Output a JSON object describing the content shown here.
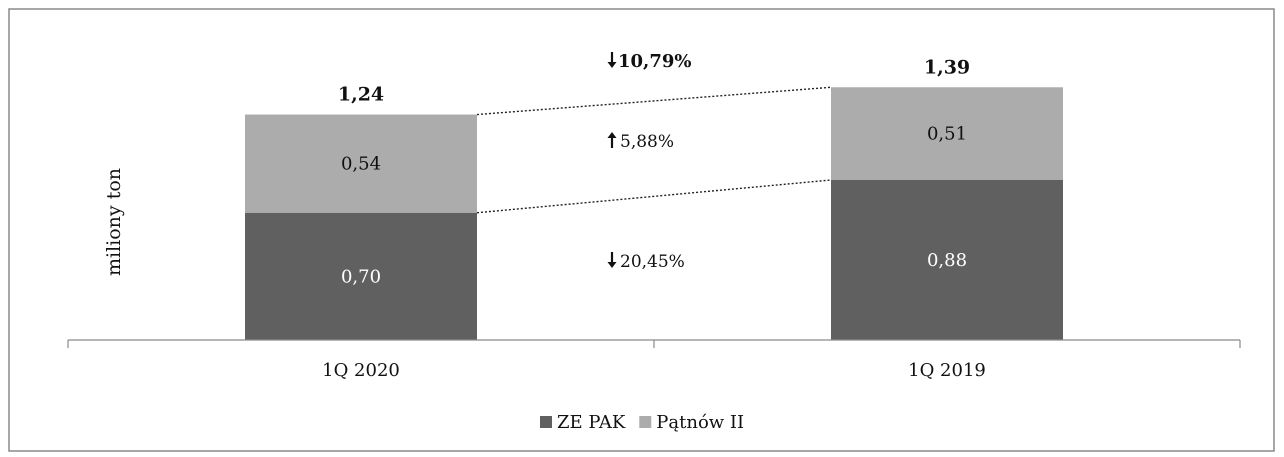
{
  "chart_data": {
    "type": "bar",
    "stacked": true,
    "title": "",
    "ylabel": "miliony ton",
    "xlabel": "",
    "categories": [
      "1Q 2020",
      "1Q 2019"
    ],
    "series": [
      {
        "name": "ZE PAK",
        "values": [
          0.7,
          0.88
        ],
        "labels": [
          "0,70",
          "0,88"
        ],
        "color": "#606060",
        "label_color": "#ffffff"
      },
      {
        "name": "Pątnów II",
        "values": [
          0.54,
          0.51
        ],
        "labels": [
          "0,54",
          "0,51"
        ],
        "color": "#acacac",
        "label_color": "#111111"
      }
    ],
    "totals": [
      {
        "value": 1.24,
        "label": "1,24"
      },
      {
        "value": 1.39,
        "label": "1,39"
      }
    ],
    "ylim": [
      0,
      1.65
    ],
    "grid": false,
    "legend": "bottom",
    "annotations": [
      {
        "arrow": "down",
        "text": "10,79%",
        "bold": true,
        "refers_to": "total"
      },
      {
        "arrow": "up",
        "text": "5,88%",
        "bold": false,
        "refers_to": "Pątnów II"
      },
      {
        "arrow": "down",
        "text": "20,45%",
        "bold": false,
        "refers_to": "ZE PAK"
      }
    ]
  }
}
